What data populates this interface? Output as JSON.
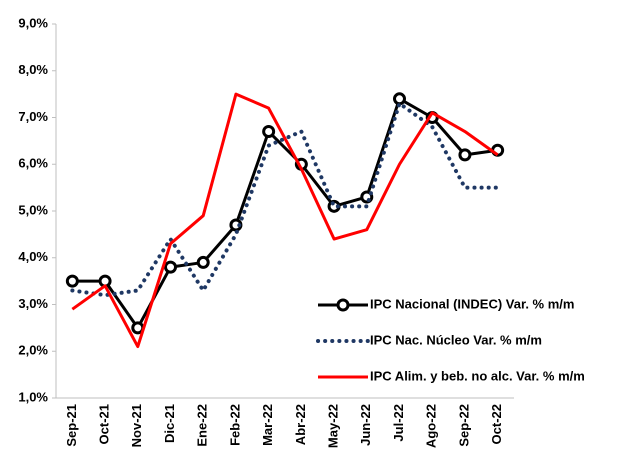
{
  "chart_data": {
    "type": "line",
    "categories": [
      "Sep-21",
      "Oct-21",
      "Nov-21",
      "Dic-21",
      "Ene-22",
      "Feb-22",
      "Mar-22",
      "Abr-22",
      "May-22",
      "Jun-22",
      "Jul-22",
      "Ago-22",
      "Sep-22",
      "Oct-22"
    ],
    "series": [
      {
        "name": "IPC Nacional (INDEC) Var. % m/m",
        "color": "#000000",
        "style": "solid-markers",
        "values": [
          3.5,
          3.5,
          2.5,
          3.8,
          3.9,
          4.7,
          6.7,
          6.0,
          5.1,
          5.3,
          7.4,
          7.0,
          6.2,
          6.3
        ]
      },
      {
        "name": "IPC Nac. Núcleo Var. % m/m",
        "color": "#1f3864",
        "style": "dotted",
        "values": [
          3.3,
          3.2,
          3.3,
          4.4,
          3.3,
          4.5,
          6.4,
          6.7,
          5.1,
          5.1,
          7.3,
          6.8,
          5.5,
          5.5
        ]
      },
      {
        "name": "IPC Alim. y beb. no alc. Var. % m/m",
        "color": "#ff0000",
        "style": "solid",
        "values": [
          2.9,
          3.4,
          2.1,
          4.3,
          4.9,
          7.5,
          7.2,
          5.9,
          4.4,
          4.6,
          6.0,
          7.1,
          6.7,
          6.2
        ]
      }
    ],
    "ylim": [
      1,
      9
    ],
    "yticks": [
      {
        "value": 1,
        "label": "1,0%"
      },
      {
        "value": 2,
        "label": "2,0%"
      },
      {
        "value": 3,
        "label": "3,0%"
      },
      {
        "value": 4,
        "label": "4,0%"
      },
      {
        "value": 5,
        "label": "5,0%"
      },
      {
        "value": 6,
        "label": "6,0%"
      },
      {
        "value": 7,
        "label": "7,0%"
      },
      {
        "value": 8,
        "label": "8,0%"
      },
      {
        "value": 9,
        "label": "9,0%"
      }
    ],
    "legend": "lower-right"
  }
}
